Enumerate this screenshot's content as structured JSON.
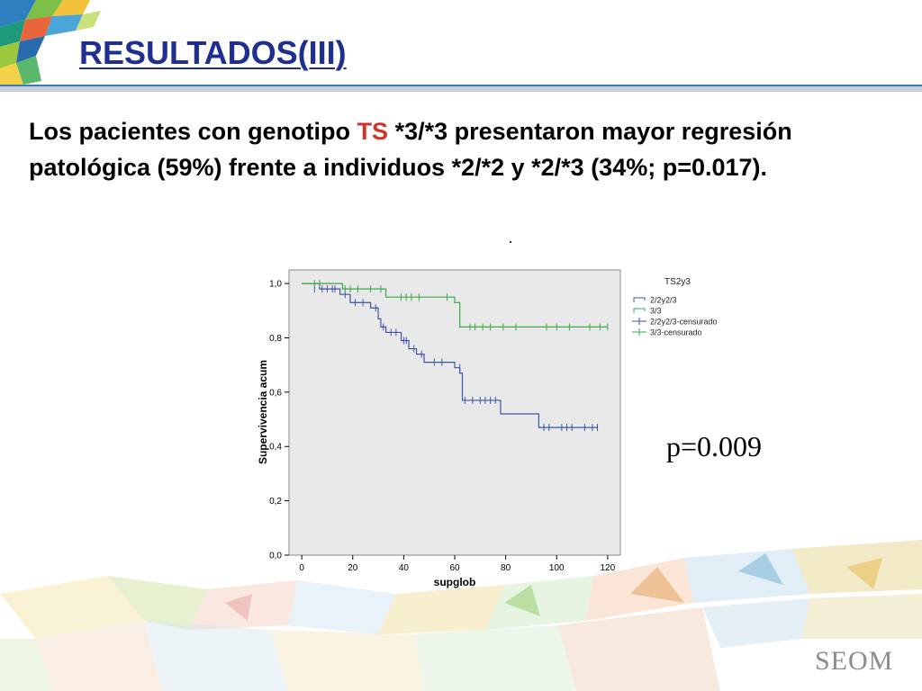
{
  "slide": {
    "title": "RESULTADOS(III)",
    "text_before": "Los pacientes con genotipo ",
    "text_accent": "TS",
    "text_after": " *3/*3 presentaron mayor regresión patológica (59%) frente a individuos *2/*2 y *2/*3 (34%; p=0.017).",
    "p_value": "p=0.009",
    "brand": "SEOM",
    "colors": {
      "title": "#1f2f8f",
      "accent": "#d0322c"
    }
  },
  "chart_data": {
    "type": "line",
    "subtype": "kaplan-meier step",
    "xlabel": "supglob",
    "ylabel": "Supervivencia acum",
    "xlim": [
      -5,
      125
    ],
    "ylim": [
      0,
      1.05
    ],
    "x_ticks": [
      0,
      20,
      40,
      60,
      80,
      100,
      120
    ],
    "y_ticks": [
      0.0,
      0.2,
      0.4,
      0.6,
      0.8,
      1.0
    ],
    "y_tick_labels": [
      "0,0",
      "0,2",
      "0,4",
      "0,6",
      "0,8",
      "1,0"
    ],
    "legend_title": "TS2y3",
    "legend_position": "right",
    "legend": [
      "2/2y2/3",
      "3/3",
      "2/2y2/3-censurado",
      "3/3-censurado"
    ],
    "series": [
      {
        "name": "2/2y2/3",
        "color": "#3d55a3",
        "steps": [
          [
            0,
            1.0
          ],
          [
            7,
            0.98
          ],
          [
            15,
            0.96
          ],
          [
            19,
            0.93
          ],
          [
            27,
            0.91
          ],
          [
            30,
            0.87
          ],
          [
            31,
            0.84
          ],
          [
            33,
            0.82
          ],
          [
            39,
            0.79
          ],
          [
            42,
            0.76
          ],
          [
            45,
            0.74
          ],
          [
            48,
            0.71
          ],
          [
            60,
            0.69
          ],
          [
            62,
            0.67
          ],
          [
            63,
            0.57
          ],
          [
            78,
            0.52
          ],
          [
            93,
            0.47
          ],
          [
            116,
            0.47
          ]
        ],
        "censored": [
          [
            5,
            0.98
          ],
          [
            8,
            0.98
          ],
          [
            10,
            0.98
          ],
          [
            12,
            0.98
          ],
          [
            13,
            0.98
          ],
          [
            17,
            0.96
          ],
          [
            21,
            0.93
          ],
          [
            24,
            0.93
          ],
          [
            29,
            0.91
          ],
          [
            32,
            0.84
          ],
          [
            35,
            0.82
          ],
          [
            37,
            0.82
          ],
          [
            40,
            0.79
          ],
          [
            41,
            0.79
          ],
          [
            44,
            0.76
          ],
          [
            47,
            0.74
          ],
          [
            52,
            0.71
          ],
          [
            55,
            0.71
          ],
          [
            62,
            0.69
          ],
          [
            64,
            0.57
          ],
          [
            67,
            0.57
          ],
          [
            70,
            0.57
          ],
          [
            72,
            0.57
          ],
          [
            74,
            0.57
          ],
          [
            76,
            0.57
          ],
          [
            95,
            0.47
          ],
          [
            97,
            0.47
          ],
          [
            102,
            0.47
          ],
          [
            104,
            0.47
          ],
          [
            106,
            0.47
          ],
          [
            111,
            0.47
          ],
          [
            114,
            0.47
          ],
          [
            116,
            0.47
          ]
        ]
      },
      {
        "name": "3/3",
        "color": "#3fa84a",
        "steps": [
          [
            0,
            1.0
          ],
          [
            16,
            0.98
          ],
          [
            33,
            0.95
          ],
          [
            60,
            0.93
          ],
          [
            62,
            0.84
          ],
          [
            120,
            0.84
          ]
        ],
        "censored": [
          [
            5,
            1.0
          ],
          [
            7,
            1.0
          ],
          [
            17,
            0.98
          ],
          [
            19,
            0.98
          ],
          [
            22,
            0.98
          ],
          [
            27,
            0.98
          ],
          [
            31,
            0.98
          ],
          [
            39,
            0.95
          ],
          [
            41,
            0.95
          ],
          [
            43,
            0.95
          ],
          [
            46,
            0.95
          ],
          [
            57,
            0.95
          ],
          [
            66,
            0.84
          ],
          [
            68,
            0.84
          ],
          [
            71,
            0.84
          ],
          [
            74,
            0.84
          ],
          [
            79,
            0.84
          ],
          [
            84,
            0.84
          ],
          [
            96,
            0.84
          ],
          [
            100,
            0.84
          ],
          [
            105,
            0.84
          ],
          [
            113,
            0.84
          ],
          [
            117,
            0.84
          ],
          [
            120,
            0.84
          ]
        ]
      }
    ]
  }
}
